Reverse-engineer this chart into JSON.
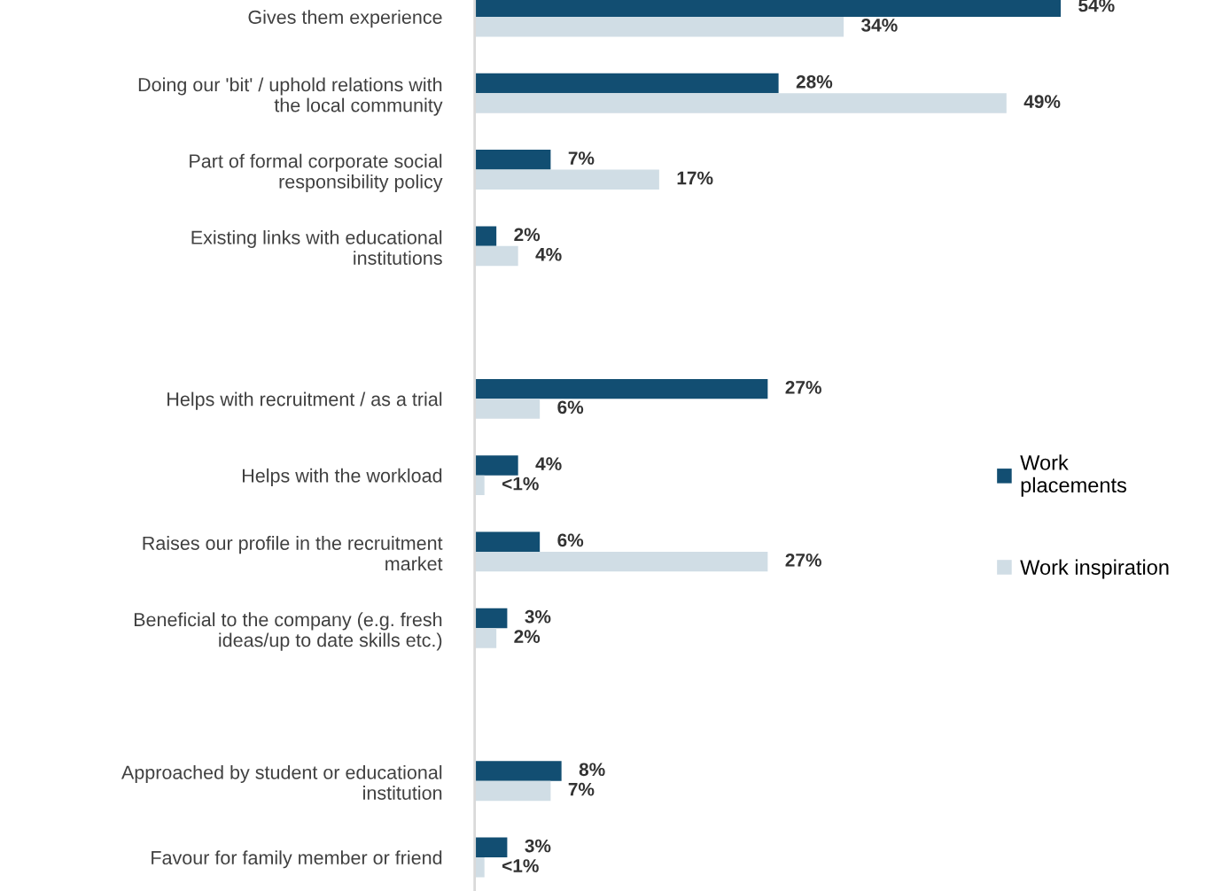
{
  "chart_data": {
    "type": "bar",
    "orientation": "horizontal",
    "legend": "right",
    "data_labels": true,
    "categories": [
      "Gives them experience",
      "Doing our 'bit' / uphold relations with\nthe local community",
      "Part of formal corporate social\nresponsibility policy",
      "Existing links with educational\ninstitutions",
      null,
      "Helps with recruitment / as a trial",
      "Helps with the workload",
      "Raises our profile in the recruitment\nmarket",
      "Beneficial to the company (e.g. fresh\nideas/up to date skills etc.)",
      null,
      "Approached by student or educational\ninstitution",
      "Favour for family member or friend"
    ],
    "series": [
      {
        "name": "Work\nplacements",
        "color": "#124e72",
        "values": [
          54,
          28,
          7,
          2,
          null,
          27,
          4,
          6,
          3,
          null,
          8,
          3
        ],
        "value_labels": [
          "54%",
          "28%",
          "7%",
          "2%",
          null,
          "27%",
          "4%",
          "6%",
          "3%",
          null,
          "8%",
          "3%"
        ]
      },
      {
        "name": "Work inspiration",
        "color": "#d0dde5",
        "values": [
          34,
          49,
          17,
          4,
          null,
          6,
          0.9,
          27,
          2,
          null,
          7,
          0.9
        ],
        "value_labels": [
          "34%",
          "49%",
          "17%",
          "4%",
          null,
          "6%",
          "<1%",
          "27%",
          "2%",
          null,
          "7%",
          "<1%"
        ]
      }
    ]
  }
}
